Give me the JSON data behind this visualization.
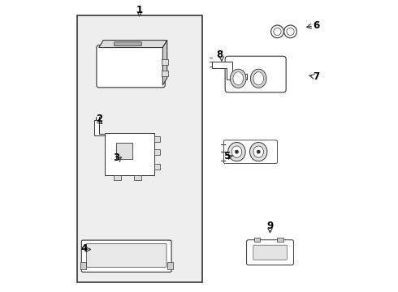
{
  "bg_color": "#ffffff",
  "panel_bg": "#eeeeee",
  "line_color": "#333333",
  "text_color": "#000000"
}
